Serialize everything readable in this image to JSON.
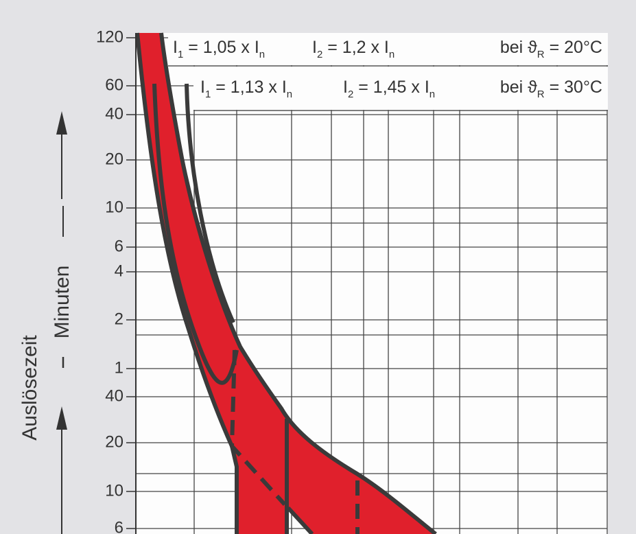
{
  "axis": {
    "title": "Auslösezeit",
    "unit": "Minuten",
    "tick_labels": [
      "120",
      "60",
      "40",
      "20",
      "10",
      "6",
      "4",
      "2",
      "1",
      "40",
      "20",
      "10",
      "6"
    ]
  },
  "legend": {
    "rows": [
      {
        "i1": [
          "I",
          "1",
          " = 1,05 x I",
          "n"
        ],
        "i2": [
          "I",
          "2",
          " = 1,2 x I",
          "n"
        ],
        "temp": [
          "bei ϑ",
          "R",
          " = 20°C"
        ]
      },
      {
        "i1": [
          "I",
          "1",
          " = 1,13 x I",
          "n"
        ],
        "i2": [
          "I",
          "2",
          " = 1,45 x I",
          "n"
        ],
        "temp": [
          "bei ϑ",
          "R",
          " = 30°C"
        ]
      }
    ]
  }
}
